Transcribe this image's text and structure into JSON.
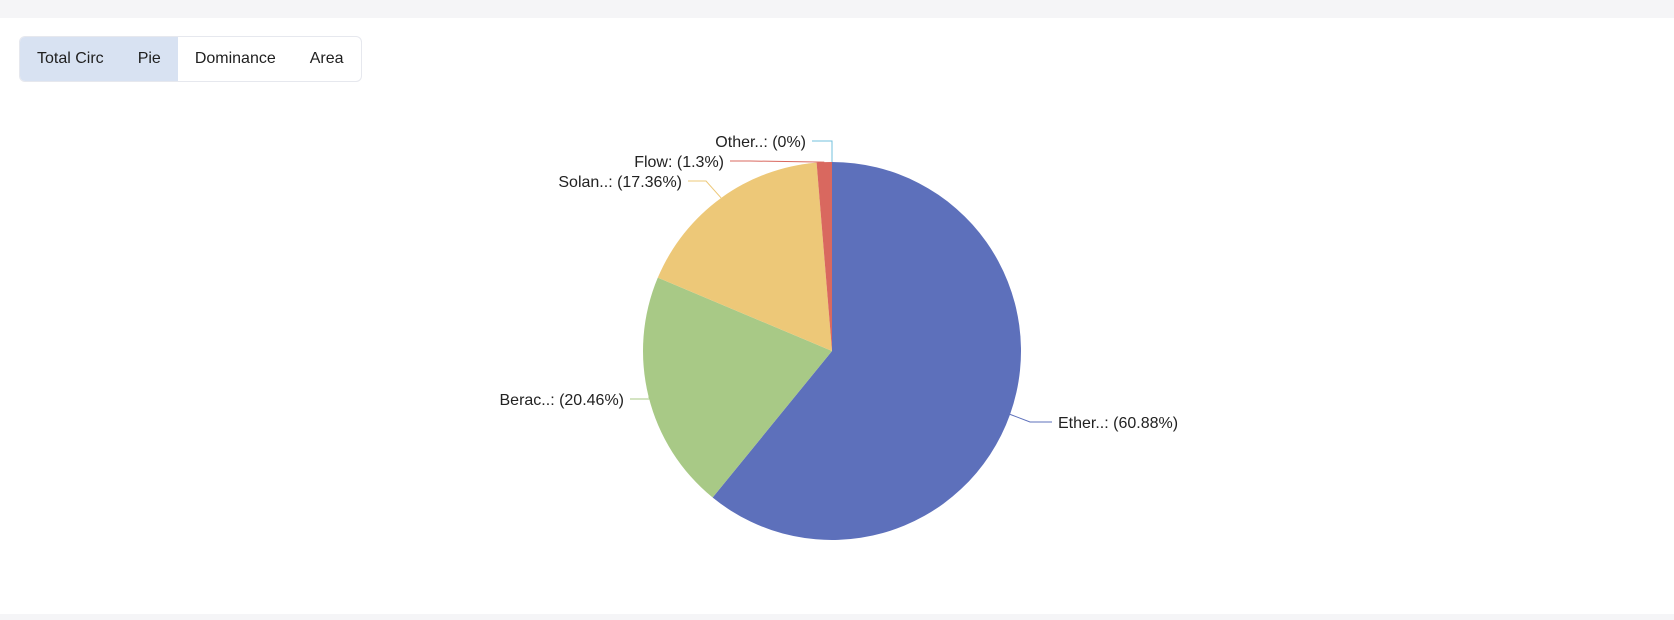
{
  "tabs": [
    {
      "label": "Total Circ",
      "active": true
    },
    {
      "label": "Pie",
      "active": true
    },
    {
      "label": "Dominance",
      "active": false
    },
    {
      "label": "Area",
      "active": false
    }
  ],
  "chart_data": {
    "type": "pie",
    "slices": [
      {
        "name": "Ether..",
        "value": 60.88,
        "label": "Ether..: (60.88%)",
        "color": "#5d70bb"
      },
      {
        "name": "Berac..",
        "value": 20.46,
        "label": "Berac..: (20.46%)",
        "color": "#a8c986"
      },
      {
        "name": "Solan..",
        "value": 17.36,
        "label": "Solan..: (17.36%)",
        "color": "#edc878"
      },
      {
        "name": "Flow",
        "value": 1.3,
        "label": "Flow: (1.3%)",
        "color": "#d9685f"
      },
      {
        "name": "Other..",
        "value": 0,
        "label": "Other..: (0%)",
        "color": "#73c0de"
      }
    ],
    "start_angle": "top",
    "direction": "clockwise",
    "legend": "none"
  }
}
